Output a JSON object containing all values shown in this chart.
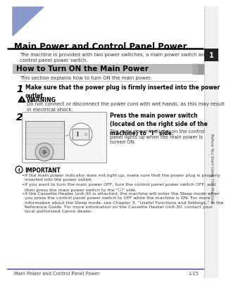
{
  "bg_color": "#ffffff",
  "title": "Main Power and Control Panel Power",
  "title_fontsize": 8.5,
  "title_color": "#000000",
  "triangle_color": "#8899cc",
  "section_bg": "#cccccc",
  "section_title": "How to Turn ON the Main Power",
  "section_title_fontsize": 7.5,
  "intro_text": "The machine is provided with two power switches, a main power switch and a\ncontrol panel power switch.",
  "section_intro": "This section explains how to turn ON the main power.",
  "step1_num": "1",
  "step1_text": "Make sure that the power plug is firmly inserted into the power\noutlet.",
  "warning_title": "WARNING",
  "warning_text": "Do not connect or disconnect the power cord with wet hands, as this may result\nin electrical shock.",
  "step2_num": "2",
  "step2_bold_text": "Press the main power switch\n(located on the right side of the\nmachine) to “I” side.",
  "step2_sub_text": "The main power indicator on the control\npanel lights up when the main power is\nturned ON.",
  "important_title": "IMPORTANT",
  "important_bullets": [
    "If the main power indicator does not light up, make sure that the power plug is properly\ninserted into the power outlet.",
    "If you want to turn the main power OFF, turn the control panel power switch OFF, and\nthen press the main power switch to the \"⒤\" side.",
    "If the Cassette Heater Unit-30 is attached, the machine will enter the Sleep mode when\nyou press the control panel power switch to OFF while the machine is ON. For more\ninformation about the Sleep mode, see Chapter 3, “Useful Functions and Settings,” in the\nReference Guide. For more information on the Cassette Heater Unit-30, contact your\nlocal authorized Canon dealer."
  ],
  "footer_left": "Main Power and Control Panel Power",
  "footer_right": "1-15",
  "sidebar_text": "Before You Start Using This Machine",
  "sidebar_num": "1",
  "bottom_line_color": "#3333aa",
  "title_line_color": "#000000"
}
